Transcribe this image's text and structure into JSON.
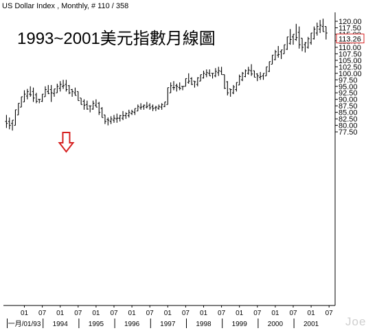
{
  "header": {
    "title": "US Dollar Index , Monthly, # 110 / 358"
  },
  "annotation": {
    "text": "1993~2001美元指數月線圖"
  },
  "watermark": {
    "text": "Joe"
  },
  "colors": {
    "bars": "#000000",
    "arrow": "#d62020",
    "last_price_box": "#d62020",
    "grid": "#d8d8d8",
    "axis": "#000000"
  },
  "chart_data": {
    "type": "bar",
    "subtype": "ohlc",
    "grid": false,
    "ylim": [
      76.5,
      122
    ],
    "y_ticks": [
      77.5,
      80.0,
      82.5,
      85.0,
      87.5,
      90.0,
      92.5,
      95.0,
      97.5,
      100.0,
      102.5,
      105.0,
      107.5,
      110.0,
      112.5,
      115.0,
      117.5,
      120.0
    ],
    "y_tick_labels": [
      "77.50",
      "80.00",
      "82.50",
      "85.00",
      "87.50",
      "90.00",
      "92.50",
      "95.00",
      "97.50",
      "100.00",
      "102.50",
      "105.00",
      "107.50",
      "110.00",
      "112.50",
      "115.00",
      "117.50",
      "120.00"
    ],
    "last_price": {
      "value": 113.26,
      "label": "113.26"
    },
    "x_tick_labels": [
      {
        "month": 0,
        "label": "01"
      },
      {
        "month": 6,
        "label": "07"
      },
      {
        "month": 12,
        "label": "01"
      },
      {
        "month": 18,
        "label": "07"
      },
      {
        "month": 24,
        "label": "01"
      },
      {
        "month": 30,
        "label": "07"
      },
      {
        "month": 36,
        "label": "01"
      },
      {
        "month": 42,
        "label": "07"
      },
      {
        "month": 48,
        "label": "01"
      },
      {
        "month": 54,
        "label": "07"
      },
      {
        "month": 60,
        "label": "01"
      },
      {
        "month": 66,
        "label": "07"
      },
      {
        "month": 72,
        "label": "01"
      },
      {
        "month": 78,
        "label": "07"
      },
      {
        "month": 84,
        "label": "01"
      },
      {
        "month": 90,
        "label": "07"
      },
      {
        "month": 96,
        "label": "01"
      },
      {
        "month": 102,
        "label": "07"
      }
    ],
    "year_labels": [
      {
        "month": 0,
        "label": "一月/01/93"
      },
      {
        "month": 12,
        "label": "1994"
      },
      {
        "month": 24,
        "label": "1995"
      },
      {
        "month": 36,
        "label": "1996"
      },
      {
        "month": 48,
        "label": "1997"
      },
      {
        "month": 60,
        "label": "1998"
      },
      {
        "month": 72,
        "label": "1999"
      },
      {
        "month": 84,
        "label": "2000"
      },
      {
        "month": 96,
        "label": "2001"
      }
    ],
    "arrow_at_month": 17,
    "bars": [
      {
        "m": -6,
        "h": 84.0,
        "l": 79.0
      },
      {
        "m": -5,
        "h": 83.0,
        "l": 78.5
      },
      {
        "m": -4,
        "h": 82.0,
        "l": 78.0
      },
      {
        "m": -3,
        "h": 86.0,
        "l": 80.0
      },
      {
        "m": -2,
        "h": 88.5,
        "l": 84.0
      },
      {
        "m": -1,
        "h": 91.0,
        "l": 87.0
      },
      {
        "m": 0,
        "h": 93.5,
        "l": 89.0
      },
      {
        "m": 1,
        "h": 94.0,
        "l": 90.0
      },
      {
        "m": 2,
        "h": 95.0,
        "l": 91.0
      },
      {
        "m": 3,
        "h": 94.5,
        "l": 89.0
      },
      {
        "m": 4,
        "h": 92.5,
        "l": 88.5
      },
      {
        "m": 5,
        "h": 90.0,
        "l": 88.5
      },
      {
        "m": 6,
        "h": 92.0,
        "l": 89.0
      },
      {
        "m": 7,
        "h": 95.0,
        "l": 91.0
      },
      {
        "m": 8,
        "h": 95.5,
        "l": 92.0
      },
      {
        "m": 9,
        "h": 95.5,
        "l": 89.0
      },
      {
        "m": 10,
        "h": 94.0,
        "l": 91.0
      },
      {
        "m": 11,
        "h": 96.0,
        "l": 92.5
      },
      {
        "m": 12,
        "h": 97.0,
        "l": 93.0
      },
      {
        "m": 13,
        "h": 97.5,
        "l": 94.0
      },
      {
        "m": 14,
        "h": 97.5,
        "l": 93.0
      },
      {
        "m": 15,
        "h": 95.5,
        "l": 92.0
      },
      {
        "m": 16,
        "h": 94.0,
        "l": 91.0
      },
      {
        "m": 17,
        "h": 94.5,
        "l": 91.5
      },
      {
        "m": 18,
        "h": 93.0,
        "l": 89.5
      },
      {
        "m": 19,
        "h": 90.5,
        "l": 88.0
      },
      {
        "m": 20,
        "h": 90.0,
        "l": 86.0
      },
      {
        "m": 21,
        "h": 89.5,
        "l": 86.0
      },
      {
        "m": 22,
        "h": 87.5,
        "l": 85.0
      },
      {
        "m": 23,
        "h": 89.5,
        "l": 86.0
      },
      {
        "m": 24,
        "h": 90.0,
        "l": 87.0
      },
      {
        "m": 25,
        "h": 89.0,
        "l": 84.0
      },
      {
        "m": 26,
        "h": 87.0,
        "l": 83.0
      },
      {
        "m": 27,
        "h": 84.0,
        "l": 80.5
      },
      {
        "m": 28,
        "h": 83.0,
        "l": 80.0
      },
      {
        "m": 29,
        "h": 83.5,
        "l": 80.5
      },
      {
        "m": 30,
        "h": 84.0,
        "l": 81.0
      },
      {
        "m": 31,
        "h": 84.5,
        "l": 81.0
      },
      {
        "m": 32,
        "h": 84.0,
        "l": 81.5
      },
      {
        "m": 33,
        "h": 85.5,
        "l": 82.0
      },
      {
        "m": 34,
        "h": 85.0,
        "l": 82.5
      },
      {
        "m": 35,
        "h": 86.0,
        "l": 83.0
      },
      {
        "m": 36,
        "h": 86.0,
        "l": 84.0
      },
      {
        "m": 37,
        "h": 86.5,
        "l": 84.0
      },
      {
        "m": 38,
        "h": 88.0,
        "l": 85.5
      },
      {
        "m": 39,
        "h": 88.5,
        "l": 86.0
      },
      {
        "m": 40,
        "h": 88.0,
        "l": 86.0
      },
      {
        "m": 41,
        "h": 89.0,
        "l": 86.5
      },
      {
        "m": 42,
        "h": 88.5,
        "l": 86.0
      },
      {
        "m": 43,
        "h": 88.0,
        "l": 85.5
      },
      {
        "m": 44,
        "h": 87.5,
        "l": 85.5
      },
      {
        "m": 45,
        "h": 88.0,
        "l": 86.0
      },
      {
        "m": 46,
        "h": 88.5,
        "l": 86.0
      },
      {
        "m": 47,
        "h": 89.0,
        "l": 87.0
      },
      {
        "m": 48,
        "h": 94.5,
        "l": 88.0
      },
      {
        "m": 49,
        "h": 96.5,
        "l": 92.5
      },
      {
        "m": 50,
        "h": 97.0,
        "l": 93.5
      },
      {
        "m": 51,
        "h": 96.0,
        "l": 93.0
      },
      {
        "m": 52,
        "h": 96.5,
        "l": 93.5
      },
      {
        "m": 53,
        "h": 95.0,
        "l": 93.5
      },
      {
        "m": 54,
        "h": 98.0,
        "l": 95.0
      },
      {
        "m": 55,
        "h": 100.0,
        "l": 96.0
      },
      {
        "m": 56,
        "h": 98.5,
        "l": 95.5
      },
      {
        "m": 57,
        "h": 97.0,
        "l": 94.5
      },
      {
        "m": 58,
        "h": 98.5,
        "l": 95.0
      },
      {
        "m": 59,
        "h": 99.5,
        "l": 97.0
      },
      {
        "m": 60,
        "h": 101.0,
        "l": 98.0
      },
      {
        "m": 61,
        "h": 101.5,
        "l": 98.5
      },
      {
        "m": 62,
        "h": 101.5,
        "l": 99.0
      },
      {
        "m": 63,
        "h": 100.0,
        "l": 98.0
      },
      {
        "m": 64,
        "h": 102.0,
        "l": 98.5
      },
      {
        "m": 65,
        "h": 102.5,
        "l": 99.0
      },
      {
        "m": 66,
        "h": 102.5,
        "l": 99.5
      },
      {
        "m": 67,
        "h": 99.5,
        "l": 94.0
      },
      {
        "m": 68,
        "h": 97.0,
        "l": 91.5
      },
      {
        "m": 69,
        "h": 94.0,
        "l": 91.0
      },
      {
        "m": 70,
        "h": 95.5,
        "l": 92.0
      },
      {
        "m": 71,
        "h": 96.5,
        "l": 93.0
      },
      {
        "m": 72,
        "h": 99.5,
        "l": 95.5
      },
      {
        "m": 73,
        "h": 100.5,
        "l": 97.0
      },
      {
        "m": 74,
        "h": 101.5,
        "l": 98.5
      },
      {
        "m": 75,
        "h": 102.5,
        "l": 99.5
      },
      {
        "m": 76,
        "h": 103.5,
        "l": 99.0
      },
      {
        "m": 77,
        "h": 101.0,
        "l": 98.5
      },
      {
        "m": 78,
        "h": 100.0,
        "l": 97.0
      },
      {
        "m": 79,
        "h": 100.5,
        "l": 97.5
      },
      {
        "m": 80,
        "h": 100.0,
        "l": 97.5
      },
      {
        "m": 81,
        "h": 102.5,
        "l": 99.0
      },
      {
        "m": 82,
        "h": 104.5,
        "l": 100.5
      },
      {
        "m": 83,
        "h": 107.0,
        "l": 103.5
      },
      {
        "m": 84,
        "h": 109.0,
        "l": 105.0
      },
      {
        "m": 85,
        "h": 110.5,
        "l": 106.0
      },
      {
        "m": 86,
        "h": 109.0,
        "l": 105.5
      },
      {
        "m": 87,
        "h": 111.0,
        "l": 107.5
      },
      {
        "m": 88,
        "h": 114.0,
        "l": 109.0
      },
      {
        "m": 89,
        "h": 117.0,
        "l": 111.0
      },
      {
        "m": 90,
        "h": 115.0,
        "l": 111.0
      },
      {
        "m": 91,
        "h": 119.0,
        "l": 112.5
      },
      {
        "m": 92,
        "h": 118.0,
        "l": 109.5
      },
      {
        "m": 93,
        "h": 113.5,
        "l": 108.5
      },
      {
        "m": 94,
        "h": 112.0,
        "l": 108.0
      },
      {
        "m": 95,
        "h": 114.0,
        "l": 109.5
      },
      {
        "m": 96,
        "h": 115.5,
        "l": 111.0
      },
      {
        "m": 97,
        "h": 118.0,
        "l": 113.0
      },
      {
        "m": 98,
        "h": 119.5,
        "l": 114.5
      },
      {
        "m": 99,
        "h": 120.5,
        "l": 115.5
      },
      {
        "m": 100,
        "h": 121.0,
        "l": 116.0
      },
      {
        "m": 101,
        "h": 118.0,
        "l": 113.0
      }
    ]
  }
}
